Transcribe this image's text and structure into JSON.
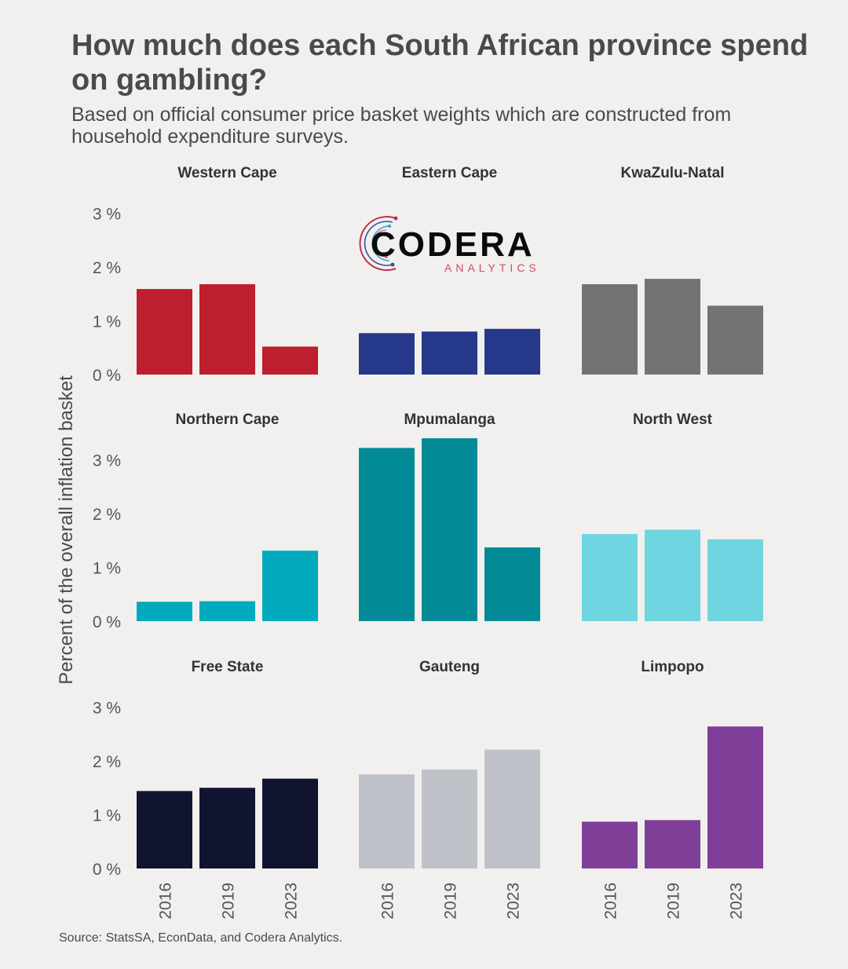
{
  "header": {
    "title": "How much does each South African province spend on gambling?",
    "subtitle": "Based on official consumer price basket weights which are constructed from household expenditure surveys."
  },
  "logo": {
    "name": "CODERA",
    "tagline": "ANALYTICS"
  },
  "source": "Source: StatsSA, EconData, and Codera Analytics.",
  "chart_data": {
    "type": "bar",
    "layout": "small-multiples 3x3",
    "ylabel": "Percent of the overall inflation basket",
    "categories": [
      "2016",
      "2019",
      "2023"
    ],
    "rows": [
      {
        "ylim": [
          0,
          3
        ],
        "yticks": [
          "0 %",
          "1 %",
          "2 %",
          "3 %"
        ],
        "ytick_values": [
          0,
          1,
          2,
          3
        ]
      },
      {
        "ylim": [
          0,
          3
        ],
        "yticks": [
          "0 %",
          "1 %",
          "2 %",
          "3 %"
        ],
        "ytick_values": [
          0,
          1,
          2,
          3
        ]
      },
      {
        "ylim": [
          0,
          3
        ],
        "yticks": [
          "0 %",
          "1 %",
          "2 %",
          "3 %"
        ],
        "ytick_values": [
          0,
          1,
          2,
          3
        ]
      }
    ],
    "panels": [
      {
        "name": "Western Cape",
        "color": "#be1e2d",
        "values": [
          1.59,
          1.68,
          0.52
        ]
      },
      {
        "name": "Eastern Cape",
        "color": "#26388a",
        "values": [
          0.77,
          0.8,
          0.85
        ]
      },
      {
        "name": "KwaZulu-Natal",
        "color": "#737373",
        "values": [
          1.68,
          1.78,
          1.28
        ]
      },
      {
        "name": "Northern Cape",
        "color": "#01aabc",
        "values": [
          0.36,
          0.37,
          1.31
        ]
      },
      {
        "name": "Mpumalanga",
        "color": "#028a96",
        "values": [
          3.22,
          3.4,
          1.37
        ]
      },
      {
        "name": "North West",
        "color": "#6ed5e1",
        "values": [
          1.62,
          1.7,
          1.52
        ]
      },
      {
        "name": "Free State",
        "color": "#111431",
        "values": [
          1.44,
          1.5,
          1.67
        ]
      },
      {
        "name": "Gauteng",
        "color": "#bfc3c9",
        "values": [
          1.75,
          1.84,
          2.21
        ]
      },
      {
        "name": "Limpopo",
        "color": "#7f3e98",
        "values": [
          0.87,
          0.9,
          2.64
        ]
      }
    ]
  }
}
